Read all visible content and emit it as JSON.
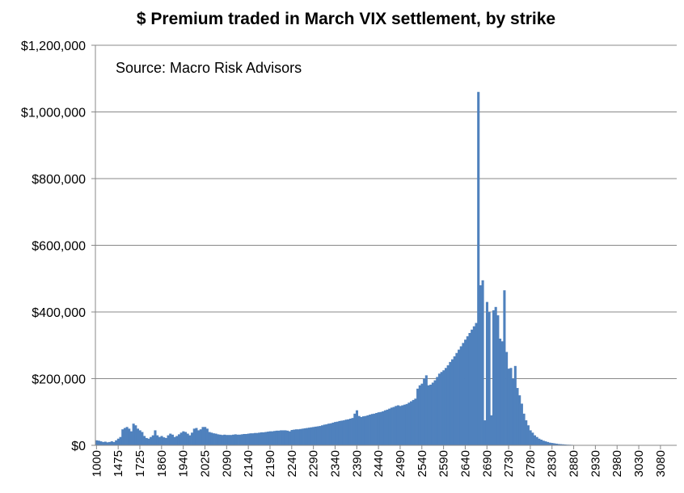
{
  "chart_data": {
    "type": "bar",
    "title": "$ Premium traded in March VIX settlement, by strike",
    "annotation": "Source: Macro Risk Advisors",
    "xlabel": "",
    "ylabel": "",
    "ylim": [
      0,
      1200000
    ],
    "y_ticks": [
      "$0",
      "$200,000",
      "$400,000",
      "$600,000",
      "$800,000",
      "$1,000,000",
      "$1,200,000"
    ],
    "y_tick_values": [
      0,
      200000,
      400000,
      600000,
      800000,
      1000000,
      1200000
    ],
    "x_tick_labels": [
      "1000",
      "1475",
      "1725",
      "1860",
      "1940",
      "2025",
      "2090",
      "2140",
      "2190",
      "2240",
      "2290",
      "2340",
      "2390",
      "2440",
      "2490",
      "2540",
      "2590",
      "2640",
      "2690",
      "2730",
      "2780",
      "2830",
      "2880",
      "2930",
      "2980",
      "3030",
      "3080"
    ],
    "x_tick_indices": [
      0,
      10,
      20,
      30,
      40,
      50,
      60,
      70,
      80,
      90,
      100,
      110,
      120,
      130,
      140,
      150,
      160,
      170,
      180,
      190,
      200,
      210,
      220,
      230,
      240,
      250,
      260
    ],
    "grid": true,
    "series": [
      {
        "name": "$ Premium",
        "color": "#4f81bd",
        "values": [
          15000,
          14000,
          12000,
          10000,
          11000,
          9000,
          10000,
          12000,
          10000,
          15000,
          20000,
          25000,
          48000,
          52000,
          55000,
          50000,
          42000,
          65000,
          60000,
          50000,
          45000,
          40000,
          28000,
          22000,
          20000,
          25000,
          30000,
          45000,
          30000,
          25000,
          28000,
          24000,
          22000,
          30000,
          35000,
          32000,
          25000,
          28000,
          33000,
          38000,
          42000,
          40000,
          35000,
          30000,
          38000,
          50000,
          52000,
          45000,
          48000,
          55000,
          55000,
          50000,
          40000,
          38000,
          36000,
          35000,
          33000,
          32000,
          31000,
          32000,
          31000,
          31000,
          31000,
          32000,
          33000,
          32000,
          32000,
          33000,
          34000,
          34000,
          35000,
          36000,
          36000,
          37000,
          37000,
          38000,
          39000,
          39000,
          40000,
          41000,
          42000,
          42000,
          43000,
          44000,
          44000,
          45000,
          45000,
          45000,
          44000,
          42000,
          46000,
          47000,
          48000,
          48000,
          49000,
          50000,
          51000,
          52000,
          53000,
          54000,
          55000,
          56000,
          57000,
          58000,
          60000,
          62000,
          63000,
          65000,
          66000,
          68000,
          70000,
          71000,
          73000,
          74000,
          75000,
          77000,
          78000,
          80000,
          82000,
          95000,
          105000,
          88000,
          85000,
          87000,
          88000,
          90000,
          92000,
          94000,
          95000,
          97000,
          99000,
          100000,
          102000,
          105000,
          107000,
          110000,
          113000,
          115000,
          118000,
          120000,
          118000,
          120000,
          122000,
          124000,
          128000,
          132000,
          136000,
          140000,
          170000,
          180000,
          185000,
          200000,
          210000,
          180000,
          182000,
          188000,
          195000,
          205000,
          215000,
          220000,
          225000,
          232000,
          240000,
          250000,
          258000,
          267000,
          277000,
          287000,
          297000,
          307000,
          317000,
          327000,
          337000,
          347000,
          357000,
          367000,
          1060000,
          480000,
          495000,
          75000,
          430000,
          400000,
          90000,
          405000,
          415000,
          390000,
          320000,
          312000,
          465000,
          280000,
          230000,
          232000,
          200000,
          238000,
          172000,
          150000,
          125000,
          95000,
          75000,
          60000,
          45000,
          38000,
          30000,
          25000,
          20000,
          17000,
          14000,
          12000,
          10000,
          8000,
          7000,
          6000,
          5000,
          4000,
          3500,
          3000,
          2500,
          2000,
          1800,
          1500,
          1200,
          1000,
          800,
          700,
          600,
          500,
          400,
          350,
          300,
          250,
          200,
          150,
          150,
          150,
          150,
          150,
          150,
          150,
          150,
          150,
          150,
          150,
          150,
          150,
          150,
          150,
          150,
          150,
          150,
          150,
          150,
          150,
          150,
          150,
          150,
          150,
          150,
          150,
          150,
          150,
          150,
          150,
          150,
          150,
          150,
          150,
          150,
          150
        ]
      }
    ]
  },
  "colors": {
    "bar": "#4f81bd",
    "gridline": "#888888",
    "axis": "#888888",
    "background": "#ffffff",
    "text": "#000000"
  }
}
